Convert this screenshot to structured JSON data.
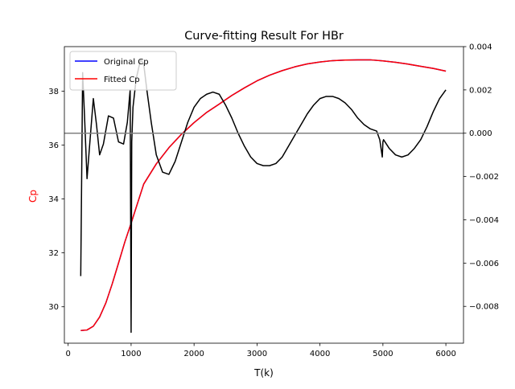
{
  "chart_data": {
    "type": "line",
    "title": "Curve-fitting Result For HBr",
    "xlabel": "T(k)",
    "ylabel": "Cp",
    "ylabel_color": "#ff0000",
    "xlim": [
      -60,
      6280
    ],
    "ylim": [
      28.65,
      39.65
    ],
    "y2lim": [
      -0.0097,
      0.004
    ],
    "x_ticks": [
      0,
      1000,
      2000,
      3000,
      4000,
      5000,
      6000
    ],
    "x_tick_labels": [
      "0",
      "1000",
      "2000",
      "3000",
      "4000",
      "5000",
      "6000"
    ],
    "y_ticks": [
      30,
      32,
      34,
      36,
      38
    ],
    "y_tick_labels": [
      "30",
      "32",
      "34",
      "36",
      "38"
    ],
    "y2_ticks": [
      -0.008,
      -0.006,
      -0.004,
      -0.002,
      0.0,
      0.002,
      0.004
    ],
    "y2_tick_labels": [
      "−0.008",
      "−0.006",
      "−0.004",
      "−0.002",
      "0.000",
      "0.002",
      "0.004"
    ],
    "legend_position": "top-left",
    "grid": false,
    "series": [
      {
        "name": "Original Cp",
        "color": "#0000ff",
        "axis": "left",
        "x": [
          200,
          300,
          400,
          500,
          600,
          700,
          800,
          900,
          1000,
          1200,
          1400,
          1600,
          1800,
          2000,
          2200,
          2400,
          2600,
          2800,
          3000,
          3200,
          3400,
          3600,
          3800,
          4000,
          4200,
          4400,
          4600,
          4800,
          5000,
          5200,
          5400,
          5600,
          5800,
          6000
        ],
        "y": [
          29.12,
          29.14,
          29.28,
          29.62,
          30.15,
          30.85,
          31.62,
          32.4,
          33.1,
          34.55,
          35.3,
          35.9,
          36.4,
          36.83,
          37.21,
          37.52,
          37.84,
          38.12,
          38.38,
          38.59,
          38.76,
          38.9,
          39.01,
          39.08,
          39.13,
          39.15,
          39.16,
          39.16,
          39.12,
          39.07,
          39.0,
          38.92,
          38.84,
          38.74
        ]
      },
      {
        "name": "Fitted Cp",
        "color": "#ff0000",
        "axis": "left",
        "x": [
          200,
          300,
          400,
          500,
          600,
          700,
          800,
          900,
          1000,
          1200,
          1400,
          1600,
          1800,
          2000,
          2200,
          2400,
          2600,
          2800,
          3000,
          3200,
          3400,
          3600,
          3800,
          4000,
          4200,
          4400,
          4600,
          4800,
          5000,
          5200,
          5400,
          5600,
          5800,
          6000
        ],
        "y": [
          29.12,
          29.14,
          29.28,
          29.62,
          30.15,
          30.85,
          31.62,
          32.4,
          33.1,
          34.55,
          35.3,
          35.9,
          36.4,
          36.83,
          37.21,
          37.52,
          37.84,
          38.12,
          38.38,
          38.59,
          38.76,
          38.9,
          39.01,
          39.08,
          39.13,
          39.15,
          39.16,
          39.16,
          39.12,
          39.07,
          39.0,
          38.92,
          38.84,
          38.74
        ]
      },
      {
        "name": "",
        "color": "#000000",
        "axis": "right",
        "x": [
          200,
          230,
          260,
          300,
          340,
          400,
          450,
          500,
          560,
          640,
          720,
          800,
          880,
          940,
          985,
          1000,
          1010,
          1030,
          1080,
          1150,
          1200,
          1250,
          1320,
          1400,
          1500,
          1600,
          1700,
          1800,
          1900,
          2000,
          2100,
          2200,
          2300,
          2400,
          2500,
          2600,
          2700,
          2800,
          2900,
          3000,
          3100,
          3200,
          3300,
          3400,
          3500,
          3600,
          3700,
          3800,
          3900,
          4000,
          4100,
          4200,
          4300,
          4400,
          4500,
          4600,
          4700,
          4800,
          4900,
          4950,
          4990,
          5000,
          5010,
          5100,
          5200,
          5300,
          5400,
          5500,
          5600,
          5700,
          5800,
          5900,
          6000
        ],
        "y": [
          -0.0066,
          0.0028,
          0.0008,
          -0.0021,
          -0.0006,
          0.0016,
          0.0004,
          -0.001,
          -0.0005,
          0.0008,
          0.0007,
          -0.0004,
          -0.0005,
          0.0005,
          0.002,
          -0.0092,
          -0.0004,
          0.0012,
          0.0025,
          0.0034,
          0.0032,
          0.002,
          0.0005,
          -0.001,
          -0.0018,
          -0.0019,
          -0.0013,
          -0.0004,
          0.0005,
          0.0012,
          0.0016,
          0.0018,
          0.0019,
          0.0018,
          0.0013,
          0.0007,
          0.0,
          -0.0006,
          -0.0011,
          -0.0014,
          -0.0015,
          -0.0015,
          -0.0014,
          -0.0011,
          -0.0006,
          -0.0001,
          0.0004,
          0.0009,
          0.0013,
          0.0016,
          0.0017,
          0.0017,
          0.0016,
          0.0014,
          0.0011,
          0.0007,
          0.0004,
          0.0002,
          0.0001,
          -0.0003,
          -0.0011,
          -0.0004,
          -0.0003,
          -0.0007,
          -0.001,
          -0.0011,
          -0.001,
          -0.0007,
          -0.0003,
          0.0003,
          0.001,
          0.0016,
          0.002
        ]
      }
    ],
    "hline": {
      "axis": "right",
      "y": 0.0,
      "color": "#808080"
    }
  }
}
